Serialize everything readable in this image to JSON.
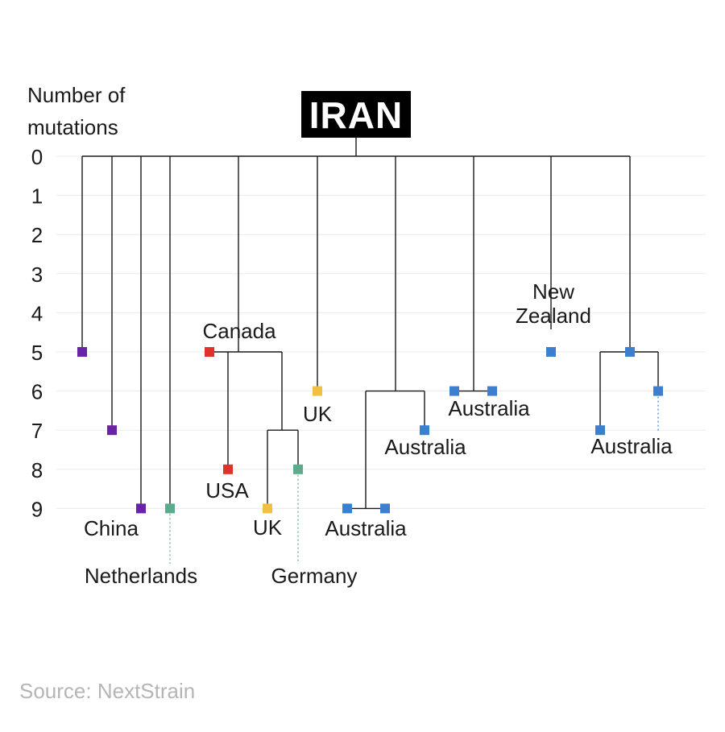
{
  "chart_data": {
    "type": "phylogenetic-tree",
    "title": "IRAN",
    "ylabel": [
      "Number of",
      "mutations"
    ],
    "y_ticks": [
      0,
      1,
      2,
      3,
      4,
      5,
      6,
      7,
      8,
      9
    ],
    "source": "Source: NextStrain",
    "colors": {
      "China": "#6a22a6",
      "Canada": "#e0312b",
      "USA": "#e0312b",
      "UK": "#f0c042",
      "Netherlands": "#5aac8c",
      "Germany": "#5aac8c",
      "Australia": "#3d7fcf",
      "New Zealand": "#3d7fcf"
    },
    "samples": [
      {
        "id": "s1",
        "country": "China",
        "mutations": 5
      },
      {
        "id": "s2",
        "country": "China",
        "mutations": 7
      },
      {
        "id": "s3",
        "country": "China",
        "mutations": 9
      },
      {
        "id": "s4",
        "country": "Netherlands",
        "mutations": 9
      },
      {
        "id": "s5",
        "country": "Canada",
        "mutations": 5
      },
      {
        "id": "s6",
        "country": "USA",
        "mutations": 8
      },
      {
        "id": "s7",
        "country": "UK",
        "mutations": 9
      },
      {
        "id": "s8",
        "country": "Germany",
        "mutations": 8
      },
      {
        "id": "s9",
        "country": "UK",
        "mutations": 6
      },
      {
        "id": "s10",
        "country": "Australia",
        "mutations": 9
      },
      {
        "id": "s11",
        "country": "Australia",
        "mutations": 9
      },
      {
        "id": "s12",
        "country": "Australia",
        "mutations": 7
      },
      {
        "id": "s13",
        "country": "Australia",
        "mutations": 6
      },
      {
        "id": "s14",
        "country": "Australia",
        "mutations": 6
      },
      {
        "id": "s15",
        "country": "New Zealand",
        "mutations": 5
      },
      {
        "id": "s16",
        "country": "Australia",
        "mutations": 5
      },
      {
        "id": "s17",
        "country": "Australia",
        "mutations": 7
      },
      {
        "id": "s18",
        "country": "Australia",
        "mutations": 6
      }
    ],
    "labels": {
      "china": "China",
      "netherlands": "Netherlands",
      "canada": "Canada",
      "usa": "USA",
      "uk_a": "UK",
      "uk_b": "UK",
      "germany": "Germany",
      "australia_a": "Australia",
      "australia_b": "Australia",
      "australia_c": "Australia",
      "australia_d": "Australia",
      "new_zealand": [
        "New",
        "Zealand"
      ]
    }
  }
}
